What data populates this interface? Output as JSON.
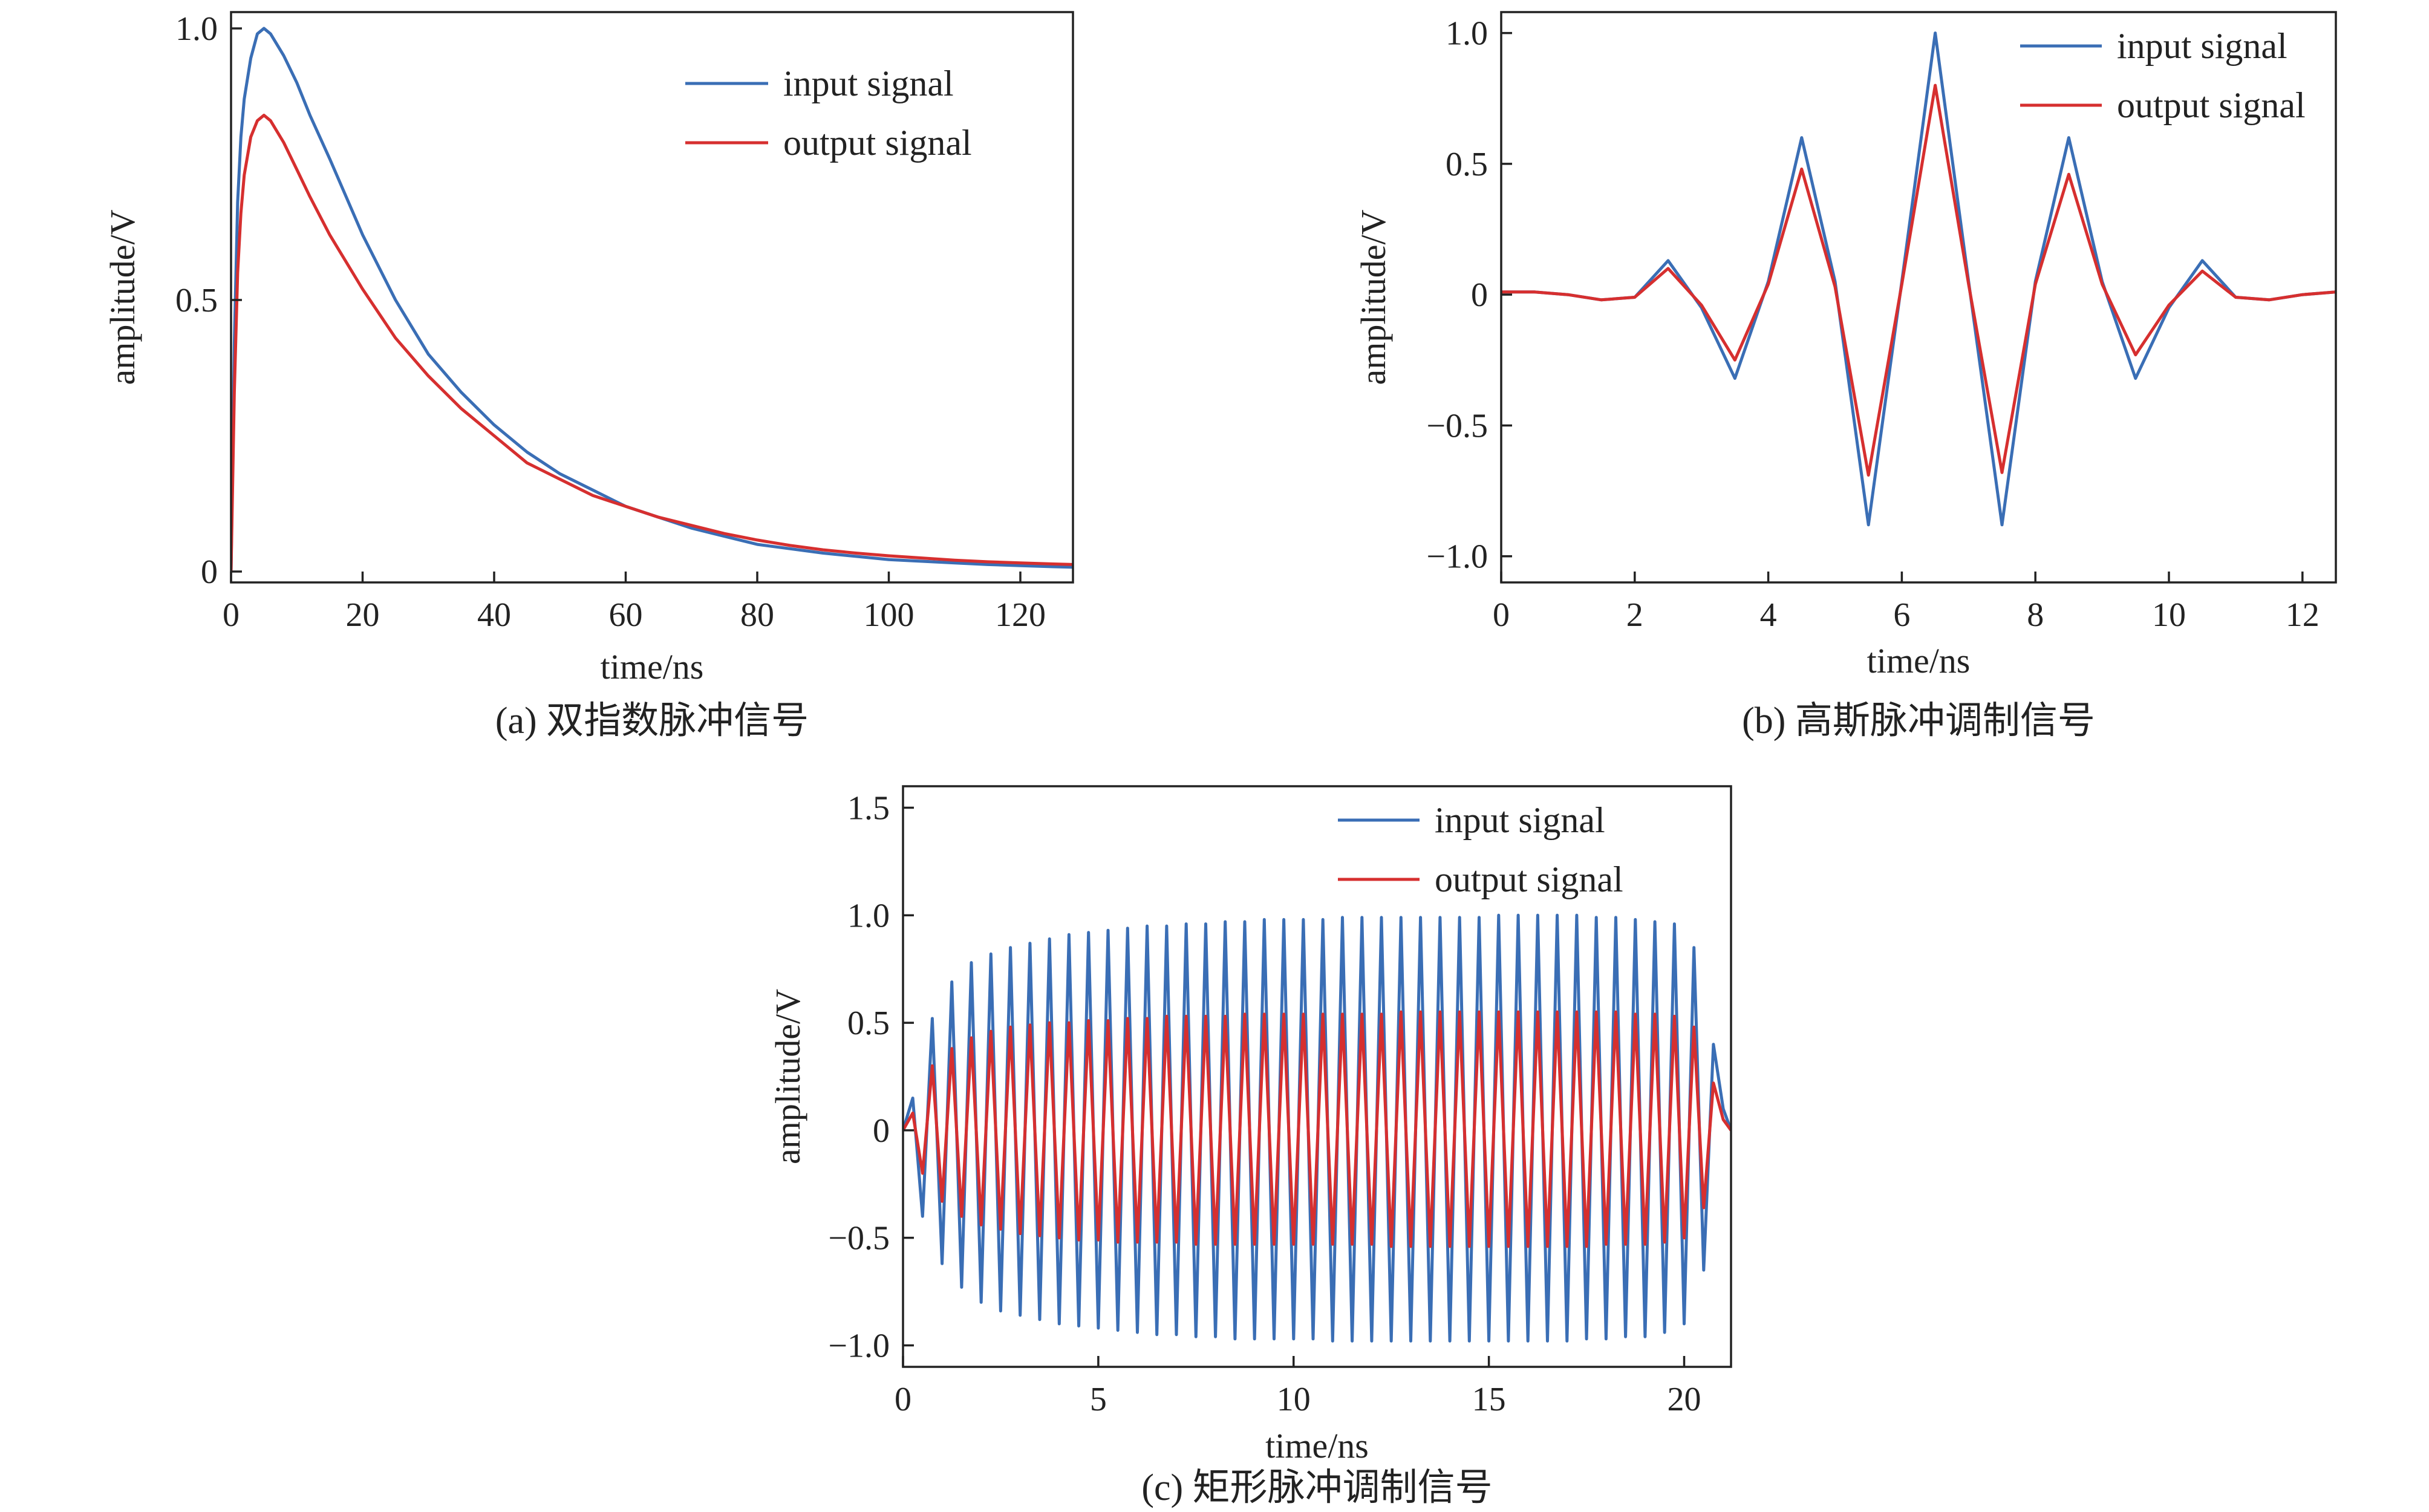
{
  "colors": {
    "input": "#3a6eb5",
    "output": "#d62f2f",
    "axis": "#222222"
  },
  "chart_data": [
    {
      "id": "a",
      "type": "line",
      "caption": "(a) 双指数脉冲信号",
      "xlabel": "time/ns",
      "ylabel": "amplitude/V",
      "xlim": [
        0,
        128
      ],
      "ylim": [
        -0.02,
        1.03
      ],
      "xticks": [
        0,
        20,
        40,
        60,
        80,
        100,
        120
      ],
      "xtick_labels": [
        "0",
        "20",
        "40",
        "60",
        "80",
        "100",
        "120"
      ],
      "yticks": [
        0,
        0.5,
        1.0
      ],
      "ytick_labels": [
        "0",
        "0.5",
        "1.0"
      ],
      "legend_position": "top-right",
      "series": [
        {
          "name": "input signal",
          "color": "#3a6eb5",
          "x": [
            0,
            0.5,
            1,
            1.5,
            2,
            3,
            4,
            5,
            6,
            8,
            10,
            12,
            15,
            20,
            25,
            30,
            35,
            40,
            45,
            50,
            55,
            60,
            65,
            70,
            75,
            80,
            85,
            90,
            95,
            100,
            105,
            110,
            115,
            120,
            125,
            128
          ],
          "y": [
            0,
            0.42,
            0.68,
            0.8,
            0.87,
            0.945,
            0.99,
            1.0,
            0.99,
            0.95,
            0.9,
            0.84,
            0.76,
            0.62,
            0.5,
            0.4,
            0.33,
            0.27,
            0.22,
            0.18,
            0.15,
            0.12,
            0.1,
            0.08,
            0.065,
            0.05,
            0.042,
            0.034,
            0.028,
            0.022,
            0.019,
            0.016,
            0.013,
            0.011,
            0.009,
            0.008
          ]
        },
        {
          "name": "output signal",
          "color": "#d62f2f",
          "x": [
            0,
            0.5,
            1,
            1.5,
            2,
            3,
            4,
            5,
            6,
            8,
            10,
            12,
            15,
            20,
            25,
            30,
            35,
            40,
            45,
            50,
            55,
            60,
            65,
            70,
            75,
            80,
            85,
            90,
            95,
            100,
            105,
            110,
            115,
            120,
            125,
            128
          ],
          "y": [
            0,
            0.33,
            0.55,
            0.66,
            0.73,
            0.8,
            0.83,
            0.84,
            0.83,
            0.79,
            0.74,
            0.69,
            0.62,
            0.52,
            0.43,
            0.36,
            0.3,
            0.25,
            0.2,
            0.17,
            0.14,
            0.12,
            0.1,
            0.085,
            0.07,
            0.058,
            0.048,
            0.04,
            0.034,
            0.029,
            0.025,
            0.021,
            0.018,
            0.016,
            0.014,
            0.013
          ]
        }
      ]
    },
    {
      "id": "b",
      "type": "line",
      "caption": "(b) 高斯脉冲调制信号",
      "xlabel": "time/ns",
      "ylabel": "amplitude/V",
      "xlim": [
        0,
        12.5
      ],
      "ylim": [
        -1.1,
        1.08
      ],
      "xticks": [
        0,
        2,
        4,
        6,
        8,
        10,
        12
      ],
      "xtick_labels": [
        "0",
        "2",
        "4",
        "6",
        "8",
        "10",
        "12"
      ],
      "yticks": [
        -1.0,
        -0.5,
        0,
        0.5,
        1.0
      ],
      "ytick_labels": [
        "−1.0",
        "−0.5",
        "0",
        "0.5",
        "1.0"
      ],
      "legend_position": "top-right",
      "series": [
        {
          "name": "input signal",
          "color": "#3a6eb5",
          "x": [
            0,
            0.5,
            1,
            1.5,
            2,
            2.5,
            3,
            3.5,
            4,
            4.5,
            5,
            5.5,
            6,
            6.5,
            7,
            7.5,
            8,
            8.5,
            9,
            9.5,
            10,
            10.5,
            11,
            11.5,
            12,
            12.5
          ],
          "y": [
            0.01,
            0.01,
            0.0,
            -0.02,
            -0.01,
            0.13,
            -0.05,
            -0.32,
            0.05,
            0.6,
            0.05,
            -0.88,
            0.05,
            1.0,
            0.05,
            -0.88,
            0.05,
            0.6,
            0.05,
            -0.32,
            -0.05,
            0.13,
            -0.01,
            -0.02,
            0.0,
            0.01
          ]
        },
        {
          "name": "output signal",
          "color": "#d62f2f",
          "x": [
            0,
            0.5,
            1,
            1.5,
            2,
            2.5,
            3,
            3.5,
            4,
            4.5,
            5,
            5.5,
            6,
            6.5,
            7,
            7.5,
            8,
            8.5,
            9,
            9.5,
            10,
            10.5,
            11,
            11.5,
            12,
            12.5
          ],
          "y": [
            0.01,
            0.01,
            0.0,
            -0.02,
            -0.01,
            0.1,
            -0.04,
            -0.25,
            0.04,
            0.48,
            0.03,
            -0.69,
            0.04,
            0.8,
            0.04,
            -0.68,
            0.04,
            0.46,
            0.04,
            -0.23,
            -0.04,
            0.09,
            -0.01,
            -0.02,
            0.0,
            0.01
          ]
        }
      ]
    },
    {
      "id": "c",
      "type": "line",
      "caption": "(c) 矩形脉冲调制信号",
      "xlabel": "time/ns",
      "ylabel": "amplitude/V",
      "xlim": [
        0,
        21.2
      ],
      "ylim": [
        -1.1,
        1.6
      ],
      "xticks": [
        0,
        5,
        10,
        15,
        20
      ],
      "xtick_labels": [
        "0",
        "5",
        "10",
        "15",
        "20"
      ],
      "yticks": [
        -1.0,
        -0.5,
        0,
        0.5,
        1.0,
        1.5
      ],
      "ytick_labels": [
        "−1.0",
        "−0.5",
        "0",
        "0.5",
        "1.0",
        "1.5"
      ],
      "legend_position": "top-right",
      "series": [
        {
          "name": "input signal",
          "color": "#3a6eb5",
          "x": [
            0,
            0.25,
            0.5,
            0.75,
            1.0,
            1.25,
            1.5,
            1.75,
            2.0,
            2.25,
            2.5,
            2.75,
            3.0,
            3.25,
            3.5,
            3.75,
            4.0,
            4.25,
            4.5,
            4.75,
            5.0,
            5.25,
            5.5,
            5.75,
            6.0,
            6.25,
            6.5,
            6.75,
            7.0,
            7.25,
            7.5,
            7.75,
            8.0,
            8.25,
            8.5,
            8.75,
            9.0,
            9.25,
            9.5,
            9.75,
            10.0,
            10.25,
            10.5,
            10.75,
            11.0,
            11.25,
            11.5,
            11.75,
            12.0,
            12.25,
            12.5,
            12.75,
            13.0,
            13.25,
            13.5,
            13.75,
            14.0,
            14.25,
            14.5,
            14.75,
            15.0,
            15.25,
            15.5,
            15.75,
            16.0,
            16.25,
            16.5,
            16.75,
            17.0,
            17.25,
            17.5,
            17.75,
            18.0,
            18.25,
            18.5,
            18.75,
            19.0,
            19.25,
            19.5,
            19.75,
            20.0,
            20.25,
            20.5,
            20.75,
            21.0,
            21.2
          ],
          "y": [
            0,
            0.15,
            -0.4,
            0.52,
            -0.62,
            0.69,
            -0.73,
            0.78,
            -0.8,
            0.82,
            -0.84,
            0.85,
            -0.86,
            0.87,
            -0.88,
            0.89,
            -0.9,
            0.91,
            -0.91,
            0.92,
            -0.92,
            0.93,
            -0.93,
            0.94,
            -0.94,
            0.95,
            -0.95,
            0.95,
            -0.95,
            0.96,
            -0.96,
            0.96,
            -0.96,
            0.97,
            -0.97,
            0.97,
            -0.97,
            0.98,
            -0.97,
            0.98,
            -0.97,
            0.98,
            -0.97,
            0.98,
            -0.98,
            0.99,
            -0.98,
            0.99,
            -0.98,
            0.99,
            -0.98,
            0.99,
            -0.98,
            0.99,
            -0.98,
            0.99,
            -0.98,
            0.99,
            -0.98,
            0.99,
            -0.98,
            1.0,
            -0.98,
            1.0,
            -0.98,
            1.0,
            -0.98,
            1.0,
            -0.98,
            1.0,
            -0.97,
            0.99,
            -0.97,
            0.99,
            -0.96,
            0.98,
            -0.96,
            0.97,
            -0.94,
            0.96,
            -0.9,
            0.85,
            -0.65,
            0.4,
            0.1,
            0.0
          ]
        },
        {
          "name": "output signal",
          "color": "#d62f2f",
          "x": [
            0,
            0.25,
            0.5,
            0.75,
            1.0,
            1.25,
            1.5,
            1.75,
            2.0,
            2.25,
            2.5,
            2.75,
            3.0,
            3.25,
            3.5,
            3.75,
            4.0,
            4.25,
            4.5,
            4.75,
            5.0,
            5.25,
            5.5,
            5.75,
            6.0,
            6.25,
            6.5,
            6.75,
            7.0,
            7.25,
            7.5,
            7.75,
            8.0,
            8.25,
            8.5,
            8.75,
            9.0,
            9.25,
            9.5,
            9.75,
            10.0,
            10.25,
            10.5,
            10.75,
            11.0,
            11.25,
            11.5,
            11.75,
            12.0,
            12.25,
            12.5,
            12.75,
            13.0,
            13.25,
            13.5,
            13.75,
            14.0,
            14.25,
            14.5,
            14.75,
            15.0,
            15.25,
            15.5,
            15.75,
            16.0,
            16.25,
            16.5,
            16.75,
            17.0,
            17.25,
            17.5,
            17.75,
            18.0,
            18.25,
            18.5,
            18.75,
            19.0,
            19.25,
            19.5,
            19.75,
            20.0,
            20.25,
            20.5,
            20.75,
            21.0,
            21.2
          ],
          "y": [
            0,
            0.08,
            -0.2,
            0.3,
            -0.33,
            0.38,
            -0.4,
            0.43,
            -0.44,
            0.46,
            -0.46,
            0.48,
            -0.48,
            0.49,
            -0.49,
            0.5,
            -0.5,
            0.5,
            -0.51,
            0.51,
            -0.51,
            0.51,
            -0.52,
            0.52,
            -0.52,
            0.52,
            -0.52,
            0.53,
            -0.52,
            0.53,
            -0.53,
            0.53,
            -0.53,
            0.53,
            -0.53,
            0.54,
            -0.53,
            0.54,
            -0.53,
            0.54,
            -0.53,
            0.54,
            -0.53,
            0.54,
            -0.53,
            0.54,
            -0.53,
            0.54,
            -0.53,
            0.54,
            -0.54,
            0.55,
            -0.54,
            0.55,
            -0.54,
            0.55,
            -0.54,
            0.55,
            -0.54,
            0.55,
            -0.54,
            0.55,
            -0.54,
            0.55,
            -0.54,
            0.55,
            -0.54,
            0.55,
            -0.54,
            0.55,
            -0.54,
            0.55,
            -0.53,
            0.55,
            -0.53,
            0.54,
            -0.53,
            0.54,
            -0.52,
            0.53,
            -0.5,
            0.48,
            -0.36,
            0.22,
            0.05,
            0.0
          ]
        }
      ]
    }
  ]
}
